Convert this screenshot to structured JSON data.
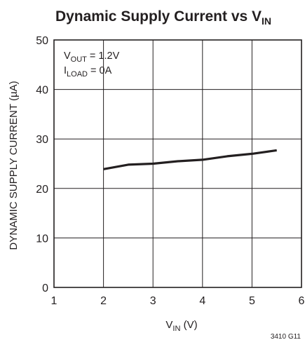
{
  "chart_data": {
    "type": "line",
    "title": "Dynamic Supply Current vs V",
    "title_subscript": "IN",
    "xlabel": "V",
    "xlabel_subscript": "IN",
    "xlabel_suffix": " (V)",
    "ylabel": "DYNAMIC SUPPLY CURRENT (µA)",
    "xlim": [
      1,
      6
    ],
    "ylim": [
      0,
      50
    ],
    "x_ticks": [
      1,
      2,
      3,
      4,
      5,
      6
    ],
    "y_ticks": [
      0,
      10,
      20,
      30,
      40,
      50
    ],
    "grid": true,
    "annotations": [
      {
        "main": "V",
        "sub": "OUT",
        "rest": " = 1.2V"
      },
      {
        "main": "I",
        "sub": "LOAD",
        "rest": " = 0A"
      }
    ],
    "series": [
      {
        "x": [
          2.0,
          2.5,
          3.0,
          3.5,
          4.0,
          4.5,
          5.0,
          5.5
        ],
        "y": [
          23.9,
          24.8,
          25.0,
          25.5,
          25.8,
          26.5,
          27.0,
          27.7
        ]
      }
    ],
    "figure_id": "3410 G11"
  },
  "colors": {
    "line": "#231f20",
    "grid": "#231f20",
    "text": "#231f20"
  }
}
